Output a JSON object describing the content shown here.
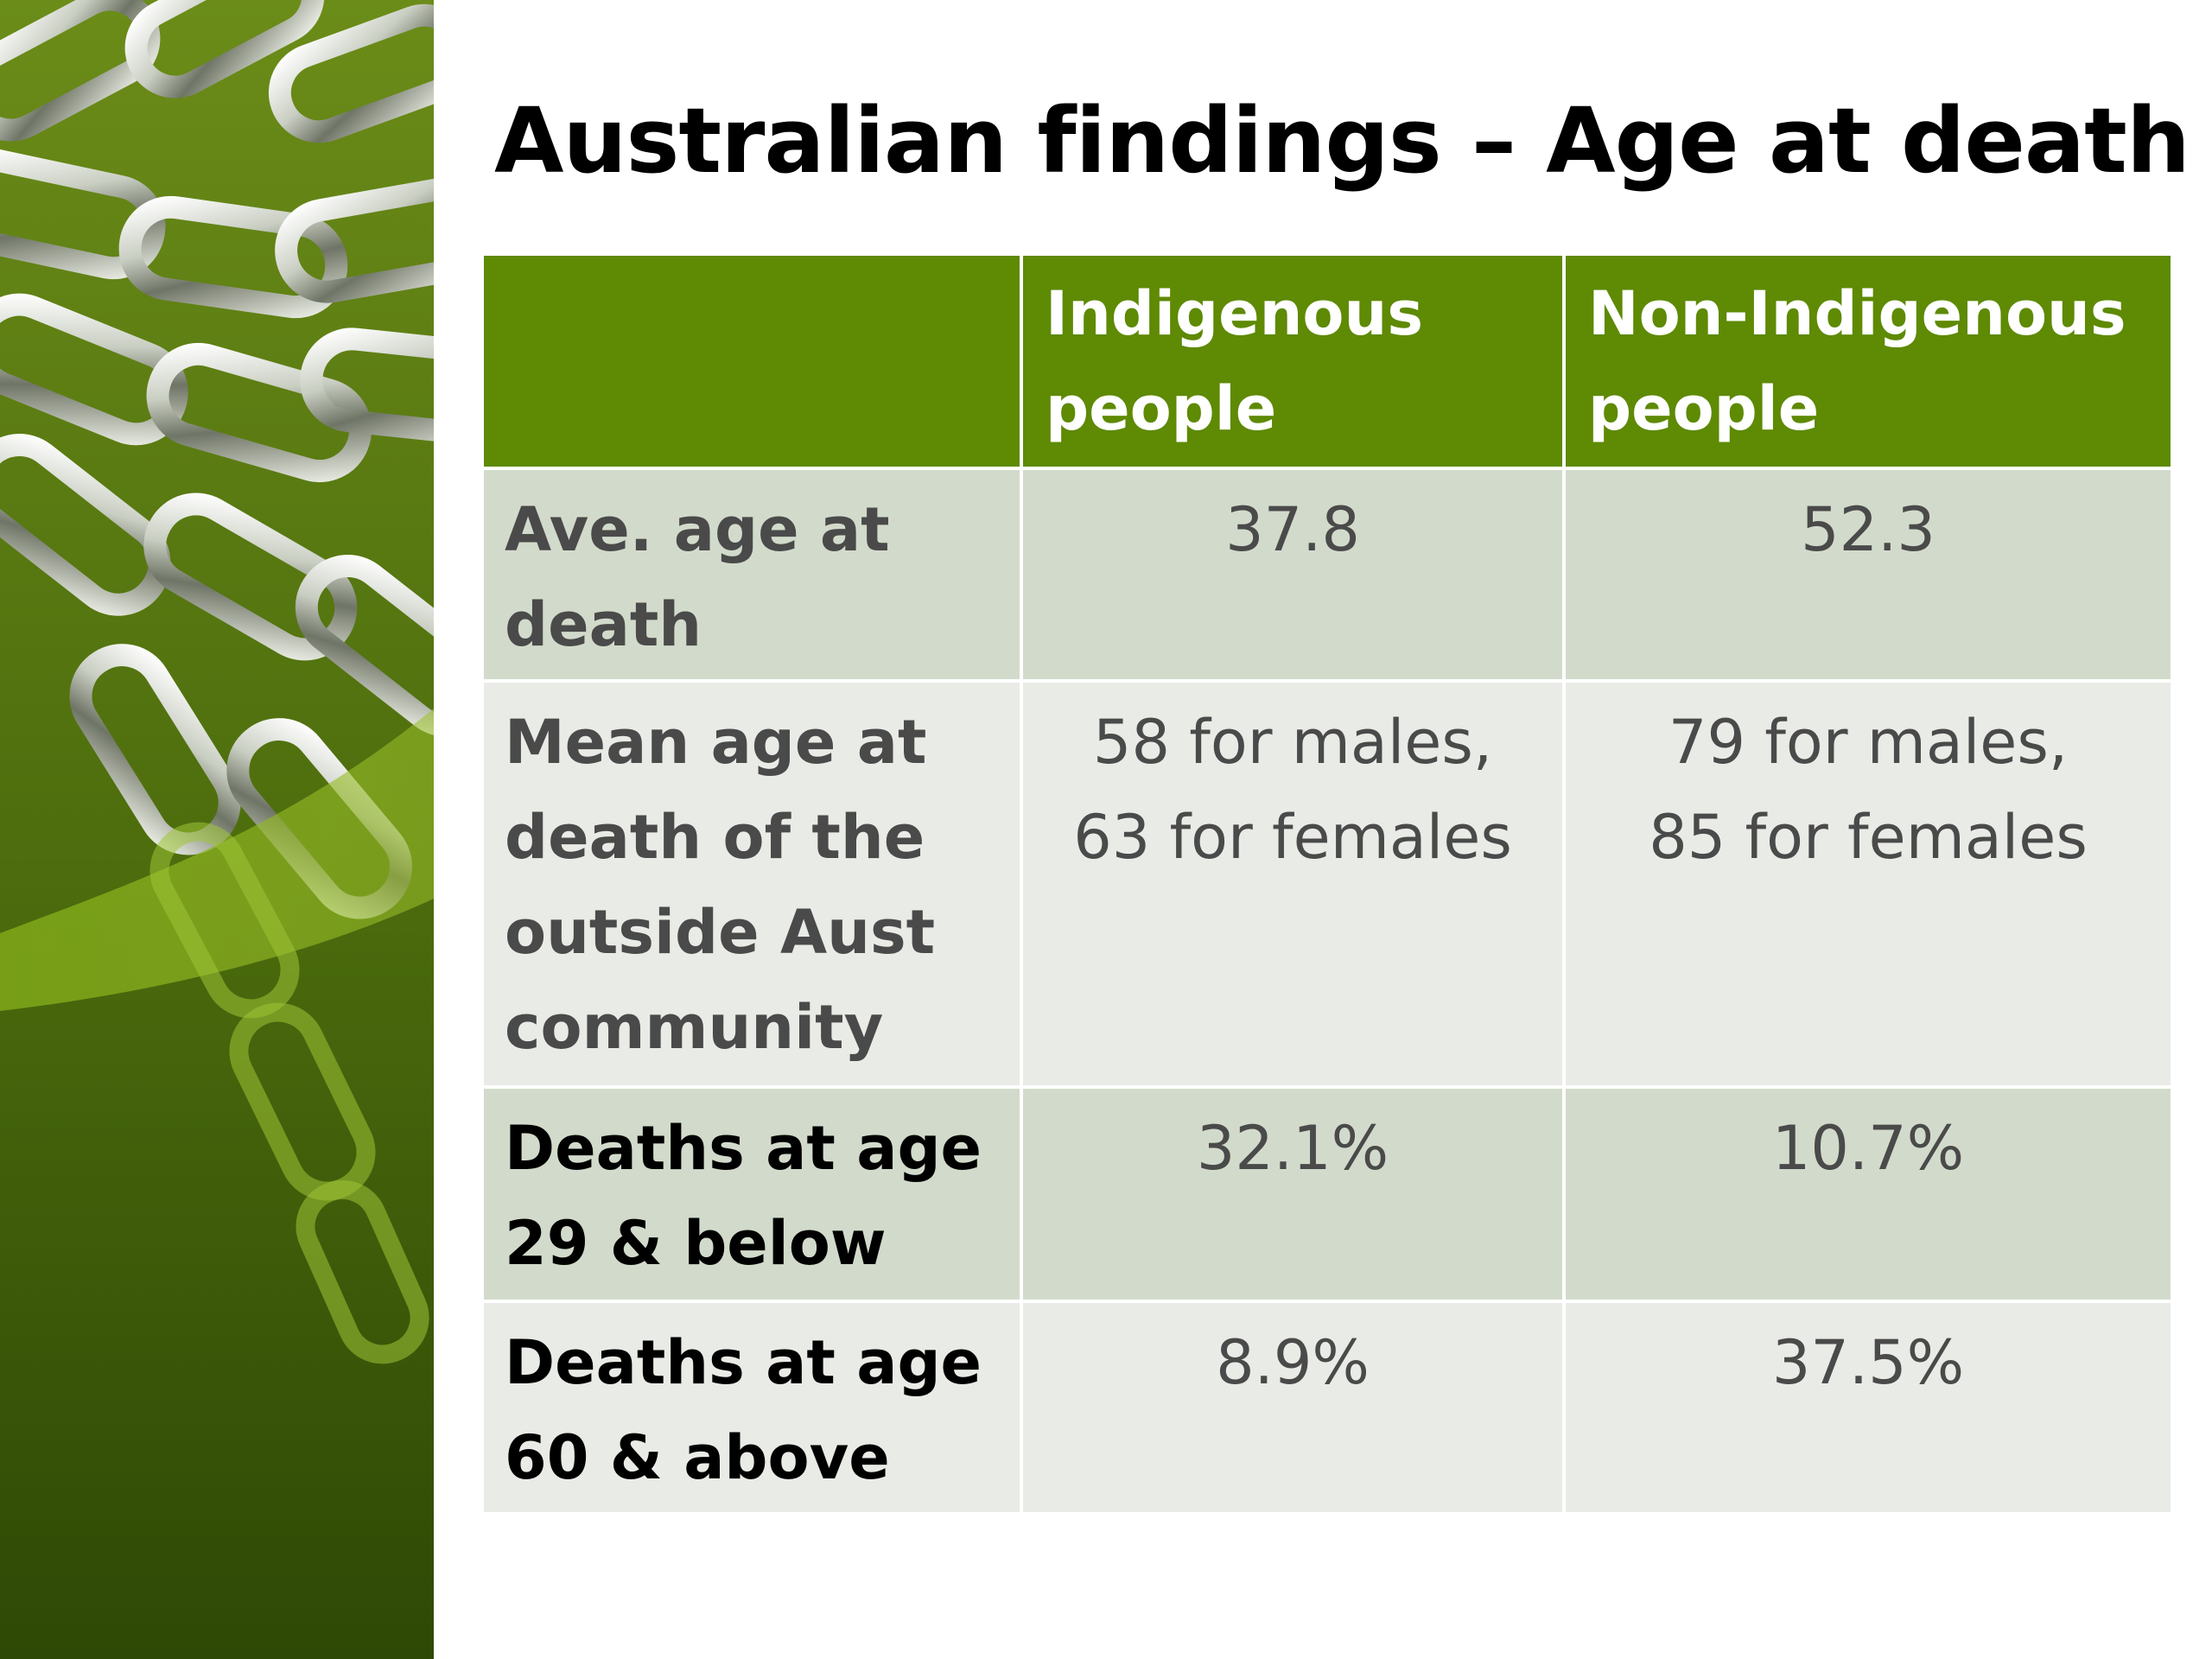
{
  "slide": {
    "title": "Australian findings – Age at death",
    "decor_icon": "chain-links-image",
    "colors": {
      "header_green": "#5e8a04",
      "row_dark": "#d2dbcb",
      "row_light": "#e9ece6",
      "panel_green": "#4b6a0c"
    }
  },
  "table": {
    "headers": [
      "",
      [
        "Indigenous",
        "people"
      ],
      [
        "Non-Indigenous",
        "people"
      ]
    ],
    "rows": [
      {
        "label": [
          "Ave. age at",
          "death"
        ],
        "indigenous": [
          "37.8"
        ],
        "non_indigenous": [
          "52.3"
        ]
      },
      {
        "label": [
          "Mean age at",
          "death of the",
          "outside Aust",
          "community"
        ],
        "indigenous": [
          "58 for males,",
          "63 for females"
        ],
        "non_indigenous": [
          "79 for males,",
          "85 for females"
        ]
      },
      {
        "label": [
          "Deaths at age",
          "29 & below"
        ],
        "indigenous": [
          "32.1%"
        ],
        "non_indigenous": [
          "10.7%"
        ]
      },
      {
        "label": [
          "Deaths at age",
          "60 & above"
        ],
        "indigenous": [
          "8.9%"
        ],
        "non_indigenous": [
          "37.5%"
        ]
      }
    ]
  }
}
